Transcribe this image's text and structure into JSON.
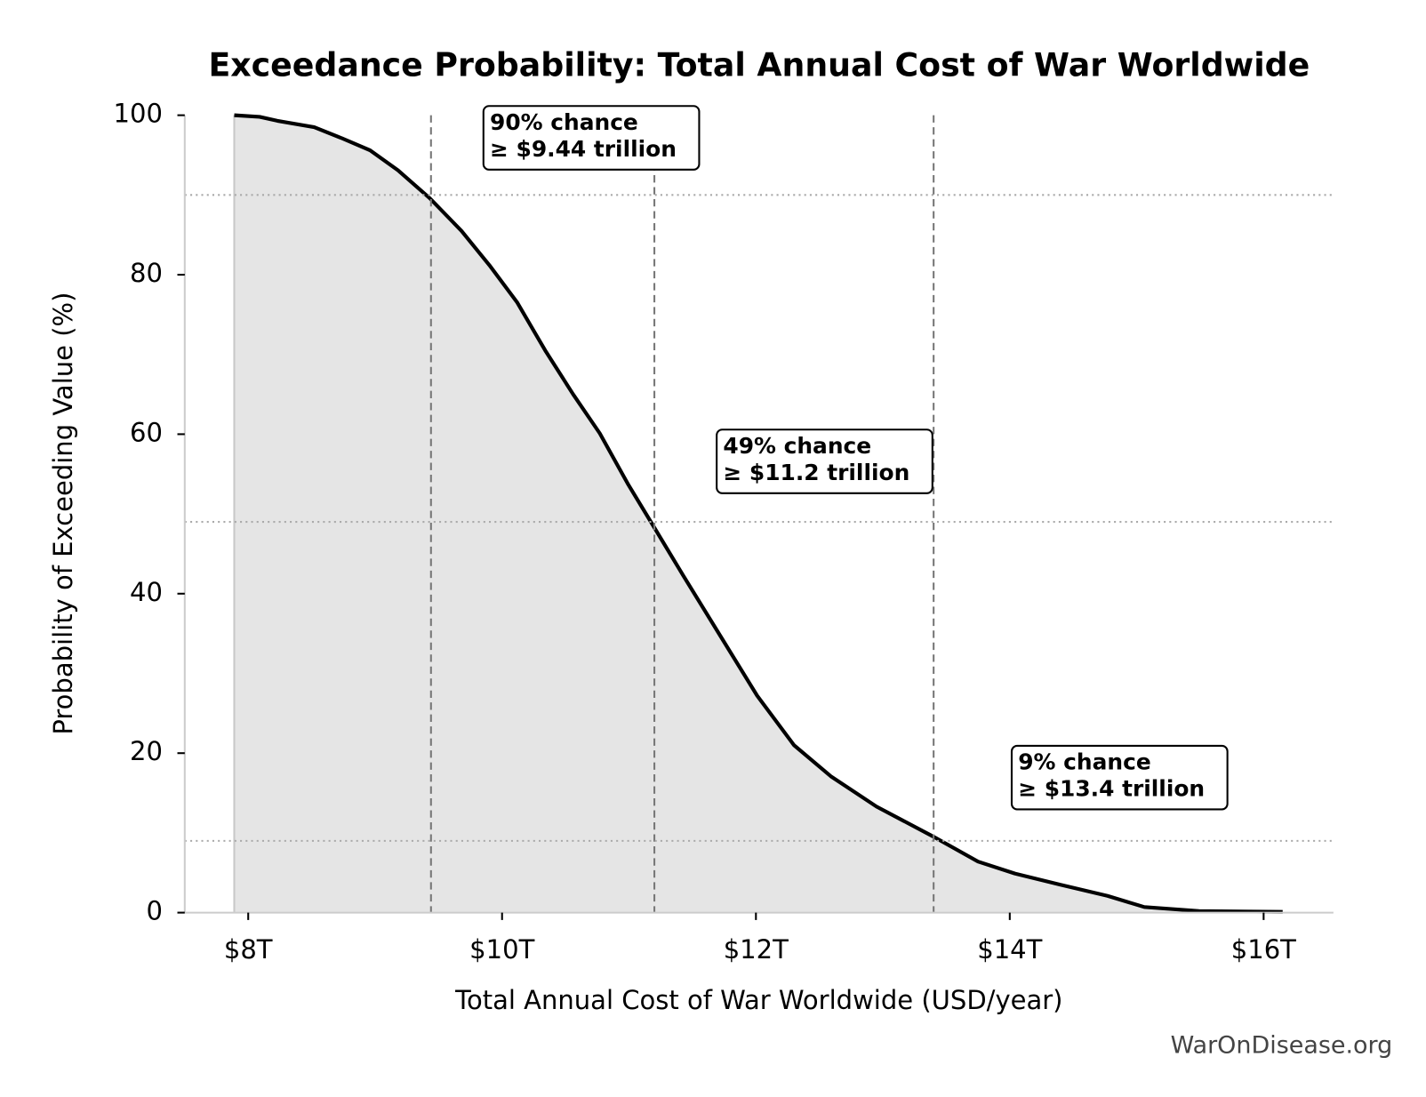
{
  "chart_data": {
    "type": "area",
    "title": "Exceedance Probability: Total Annual Cost of War Worldwide",
    "x_label": "Total Annual Cost of War Worldwide (USD/year)",
    "y_label": "Probability of Exceeding Value (%)",
    "watermark": "WarOnDisease.org",
    "x": [
      7.89,
      8.09,
      8.23,
      8.52,
      8.74,
      8.96,
      9.18,
      9.43,
      9.68,
      9.9,
      10.12,
      10.34,
      10.56,
      10.77,
      10.99,
      11.18,
      11.43,
      11.72,
      12.01,
      12.3,
      12.59,
      12.95,
      13.39,
      13.75,
      14.04,
      14.4,
      14.77,
      15.06,
      15.49,
      16.15
    ],
    "values": [
      100,
      99.8,
      99.3,
      98.5,
      97.1,
      95.6,
      93.1,
      89.6,
      85.5,
      81.2,
      76.5,
      70.5,
      65.0,
      60.1,
      53.8,
      48.8,
      42.2,
      34.7,
      27.2,
      21.0,
      17.1,
      13.3,
      9.6,
      6.4,
      4.9,
      3.5,
      2.1,
      0.7,
      0.2,
      0.1
    ],
    "color": "#000000",
    "fill_color": "#e5e5e5",
    "xlim": [
      7.5,
      16.55
    ],
    "ylim": [
      0,
      100
    ],
    "xticks": [
      {
        "value": 8,
        "label": "$8T"
      },
      {
        "value": 10,
        "label": "$10T"
      },
      {
        "value": 12,
        "label": "$12T"
      },
      {
        "value": 14,
        "label": "$14T"
      },
      {
        "value": 16,
        "label": "$16T"
      }
    ],
    "yticks": [
      0,
      20,
      40,
      60,
      80,
      100
    ],
    "markers": [
      {
        "x": 9.44,
        "probability": 90,
        "label": [
          "90% chance",
          "≥ $9.44 trillion"
        ]
      },
      {
        "x": 11.2,
        "probability": 49,
        "label": [
          "49% chance",
          "≥ $11.2 trillion"
        ]
      },
      {
        "x": 13.4,
        "probability": 9,
        "label": [
          "9% chance",
          "≥ $13.4 trillion"
        ]
      }
    ]
  }
}
